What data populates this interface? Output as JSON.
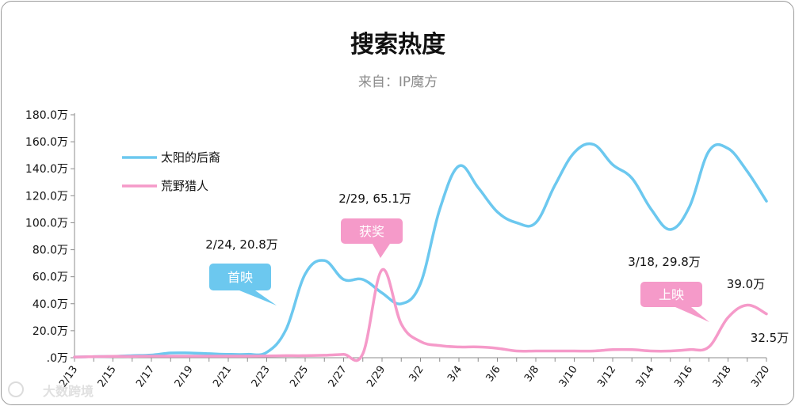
{
  "chart_data": {
    "type": "line",
    "title": "搜索热度",
    "subtitle": "来自：IP魔方",
    "x": [
      "2/13",
      "2/14",
      "2/15",
      "2/16",
      "2/17",
      "2/18",
      "2/19",
      "2/20",
      "2/21",
      "2/22",
      "2/23",
      "2/24",
      "2/25",
      "2/26",
      "2/27",
      "2/28",
      "2/29",
      "3/1",
      "3/2",
      "3/3",
      "3/4",
      "3/5",
      "3/6",
      "3/7",
      "3/8",
      "3/9",
      "3/10",
      "3/11",
      "3/12",
      "3/13",
      "3/14",
      "3/15",
      "3/16",
      "3/17",
      "3/18",
      "3/19",
      "3/20"
    ],
    "x_ticks": [
      "2/13",
      "2/15",
      "2/17",
      "2/19",
      "2/21",
      "2/23",
      "2/25",
      "2/27",
      "2/29",
      "3/2",
      "3/4",
      "3/6",
      "3/8",
      "3/10",
      "3/12",
      "3/14",
      "3/16",
      "3/18",
      "3/20"
    ],
    "y_ticks": [
      ".0万",
      "20.0万",
      "40.0万",
      "60.0万",
      "80.0万",
      "100.0万",
      "120.0万",
      "140.0万",
      "160.0万",
      "180.0万"
    ],
    "ylim": [
      0,
      180
    ],
    "series": [
      {
        "name": "太阳的后裔",
        "color": "#6cc8ef",
        "values": [
          0.5,
          0.8,
          1.0,
          1.5,
          2.0,
          3.5,
          3.5,
          3.0,
          2.5,
          2.5,
          4.0,
          20.8,
          62.0,
          72.0,
          58.0,
          58.0,
          48.0,
          40.0,
          55.0,
          110.0,
          142.0,
          126.0,
          108.0,
          100.0,
          100.0,
          128.0,
          152.0,
          158.0,
          143.0,
          133.0,
          110.0,
          95.0,
          112.0,
          153.0,
          155.0,
          138.0,
          116.0
        ]
      },
      {
        "name": "荒野猎人",
        "color": "#f59ac9",
        "values": [
          0.5,
          0.8,
          1.0,
          1.0,
          1.2,
          1.2,
          1.2,
          1.2,
          1.2,
          1.2,
          1.3,
          1.5,
          1.5,
          1.8,
          2.5,
          3.0,
          65.1,
          25.0,
          12.0,
          9.0,
          8.0,
          8.0,
          7.0,
          5.0,
          5.0,
          5.0,
          5.0,
          5.0,
          6.0,
          6.0,
          5.0,
          5.0,
          6.0,
          8.0,
          29.8,
          39.0,
          32.5
        ]
      }
    ],
    "annotations": [
      {
        "text": "2/24, 20.8万",
        "series": 0,
        "x": "2/24",
        "y": 20.8
      },
      {
        "text": "2/29, 65.1万",
        "series": 1,
        "x": "2/29",
        "y": 65.1
      },
      {
        "text": "3/18, 29.8万",
        "series": 1,
        "x": "3/18",
        "y": 29.8
      },
      {
        "text": "39.0万",
        "series": 1,
        "x": "3/19",
        "y": 39.0
      },
      {
        "text": "32.5万",
        "series": 1,
        "x": "3/20",
        "y": 32.5
      }
    ],
    "callouts": [
      {
        "text": "首映",
        "color": "#6cc8ef",
        "x": "2/24",
        "y": 20.8
      },
      {
        "text": "获奖",
        "color": "#f59ac9",
        "x": "2/29",
        "y": 65.1
      },
      {
        "text": "上映",
        "color": "#f59ac9",
        "x": "3/17",
        "y": 8.0
      }
    ],
    "legend": "top-left",
    "grid": false
  },
  "watermark": "大数跨境"
}
